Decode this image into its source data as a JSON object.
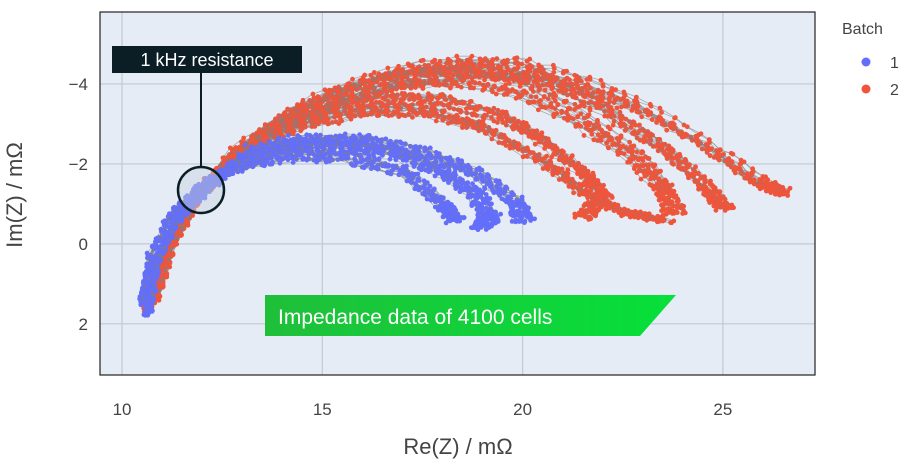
{
  "chart_data": {
    "type": "scatter",
    "xlabel": "Re(Z) / mΩ",
    "ylabel": "Im(Z) / mΩ",
    "xlim": [
      9.45,
      27.3
    ],
    "ylim": [
      3.28,
      -5.8
    ],
    "y_reversed": true,
    "xticks": [
      10,
      15,
      20,
      25
    ],
    "yticks": [
      -4,
      -2,
      0,
      2
    ],
    "grid": true,
    "legend": {
      "title": "Batch",
      "placement": "right",
      "entries": [
        {
          "name": "1",
          "color": "#636efa"
        },
        {
          "name": "2",
          "color": "#ef553b"
        }
      ]
    },
    "connector_color": "#808080",
    "series": [
      {
        "name": "1",
        "color": "#636efa",
        "curves": [
          [
            [
              10.6,
              1.7
            ],
            [
              10.8,
              0.5
            ],
            [
              11.3,
              -0.5
            ],
            [
              12,
              -1.3
            ],
            [
              13,
              -2.1
            ],
            [
              14,
              -2.4
            ],
            [
              15,
              -2.5
            ],
            [
              16,
              -2.4
            ],
            [
              17,
              -2.2
            ],
            [
              18,
              -1.8
            ],
            [
              18.8,
              -1.3
            ],
            [
              19.2,
              -0.7
            ],
            [
              19,
              -0.4
            ]
          ],
          [
            [
              10.7,
              1.6
            ],
            [
              10.9,
              0.4
            ],
            [
              11.4,
              -0.6
            ],
            [
              12.1,
              -1.4
            ],
            [
              13.2,
              -2.3
            ],
            [
              14.5,
              -2.6
            ],
            [
              16,
              -2.6
            ],
            [
              17.5,
              -2.3
            ],
            [
              18.8,
              -1.8
            ],
            [
              19.8,
              -1.1
            ],
            [
              20,
              -0.6
            ]
          ],
          [
            [
              10.5,
              1.4
            ],
            [
              10.7,
              0.3
            ],
            [
              11.2,
              -0.7
            ],
            [
              11.9,
              -1.4
            ],
            [
              12.8,
              -1.9
            ],
            [
              14,
              -2.2
            ],
            [
              15.5,
              -2.2
            ],
            [
              17,
              -1.8
            ],
            [
              18,
              -1.0
            ],
            [
              18.3,
              -0.6
            ]
          ]
        ]
      },
      {
        "name": "2",
        "color": "#ef553b",
        "curves": [
          [
            [
              10.6,
              1.6
            ],
            [
              11,
              0.3
            ],
            [
              11.6,
              -0.9
            ],
            [
              12.5,
              -1.9
            ],
            [
              13.5,
              -2.7
            ],
            [
              15,
              -3.3
            ],
            [
              16.5,
              -3.6
            ],
            [
              18,
              -3.6
            ],
            [
              19.5,
              -3.2
            ],
            [
              20.5,
              -2.6
            ],
            [
              21.5,
              -1.8
            ],
            [
              22,
              -1.2
            ],
            [
              21.5,
              -0.7
            ]
          ],
          [
            [
              10.7,
              1.5
            ],
            [
              11.1,
              0.2
            ],
            [
              11.8,
              -1.1
            ],
            [
              12.8,
              -2.2
            ],
            [
              14,
              -3.1
            ],
            [
              15.5,
              -3.7
            ],
            [
              17,
              -4.1
            ],
            [
              18.5,
              -4.2
            ],
            [
              20,
              -3.9
            ],
            [
              21.5,
              -3.1
            ],
            [
              22.8,
              -2.2
            ],
            [
              23.5,
              -1.4
            ],
            [
              23.8,
              -0.8
            ]
          ],
          [
            [
              10.8,
              1.4
            ],
            [
              11.2,
              0.1
            ],
            [
              11.9,
              -1.2
            ],
            [
              13,
              -2.4
            ],
            [
              14.5,
              -3.4
            ],
            [
              16,
              -4.0
            ],
            [
              17.5,
              -4.35
            ],
            [
              19,
              -4.4
            ],
            [
              20.5,
              -4.1
            ],
            [
              22,
              -3.4
            ],
            [
              23.5,
              -2.4
            ],
            [
              24.5,
              -1.5
            ],
            [
              25,
              -0.9
            ]
          ],
          [
            [
              10.6,
              1.5
            ],
            [
              11,
              0.2
            ],
            [
              11.7,
              -1.0
            ],
            [
              12.8,
              -2.3
            ],
            [
              14.5,
              -3.3
            ],
            [
              16.5,
              -4.1
            ],
            [
              18.5,
              -4.4
            ],
            [
              20,
              -4.4
            ],
            [
              21.5,
              -4.0
            ],
            [
              23,
              -3.4
            ],
            [
              24.5,
              -2.5
            ],
            [
              25.8,
              -1.6
            ],
            [
              26.4,
              -1.3
            ]
          ],
          [
            [
              10.9,
              1.3
            ],
            [
              11.3,
              0.0
            ],
            [
              12,
              -1.3
            ],
            [
              13,
              -2.3
            ],
            [
              14.5,
              -3.0
            ],
            [
              16,
              -3.3
            ],
            [
              17.5,
              -3.3
            ],
            [
              19,
              -2.9
            ],
            [
              20.5,
              -2.1
            ],
            [
              21.5,
              -1.3
            ],
            [
              22.5,
              -0.8
            ],
            [
              23.5,
              -0.6
            ]
          ]
        ]
      }
    ],
    "annotations": [
      {
        "text": "1 kHz resistance",
        "target": [
          12,
          -1.35
        ]
      },
      {
        "text": "Impedance data of 4100 cells"
      }
    ]
  }
}
